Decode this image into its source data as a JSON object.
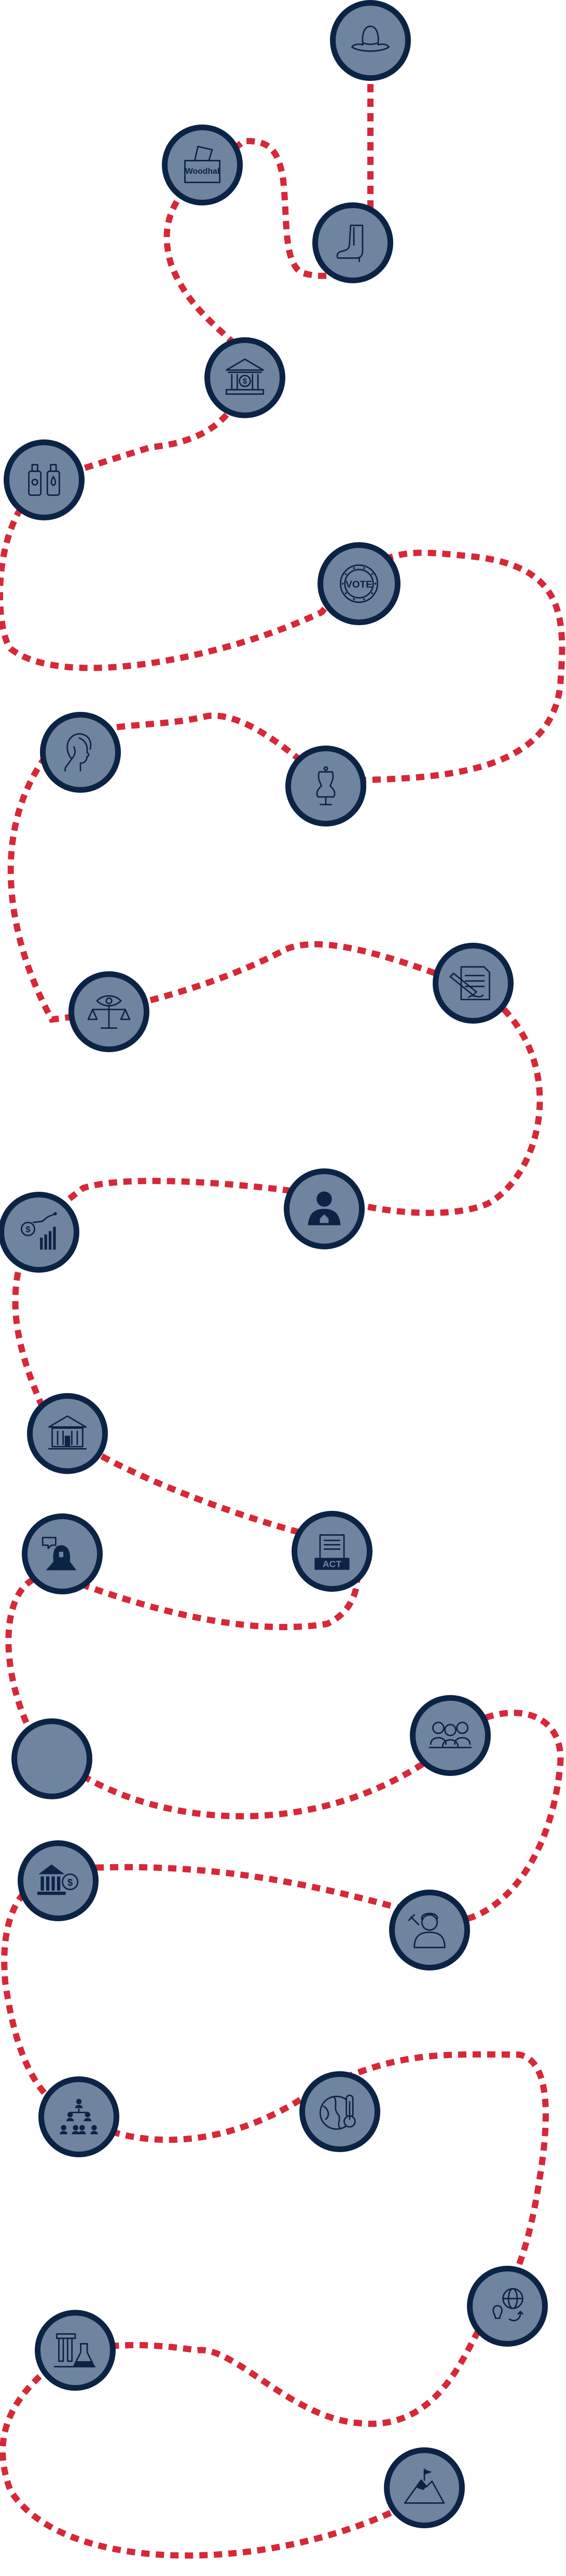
{
  "diagram": {
    "path_color": "#d62839",
    "node_ring_color": "#0b2344",
    "node_fill_color": "#6f849f",
    "nodes": [
      {
        "id": "hat",
        "icon": "hat-icon"
      },
      {
        "id": "boot",
        "icon": "boot-icon"
      },
      {
        "id": "ballot",
        "icon": "ballot-box-icon",
        "text": "Woodhal"
      },
      {
        "id": "bank",
        "icon": "bank-dollar-icon"
      },
      {
        "id": "bottles",
        "icon": "bottles-icon"
      },
      {
        "id": "vote",
        "icon": "vote-badge-icon",
        "text": "VOTE"
      },
      {
        "id": "woman",
        "icon": "woman-profile-icon"
      },
      {
        "id": "dress",
        "icon": "dress-form-icon"
      },
      {
        "id": "scales",
        "icon": "scales-eye-icon"
      },
      {
        "id": "signing",
        "icon": "document-signing-icon"
      },
      {
        "id": "banker-woman",
        "icon": "woman-banker-icon"
      },
      {
        "id": "growth",
        "icon": "money-growth-chart-icon"
      },
      {
        "id": "institution",
        "icon": "institution-building-icon"
      },
      {
        "id": "speaker",
        "icon": "woman-speaking-icon"
      },
      {
        "id": "act",
        "icon": "act-document-icon",
        "text": "ACT"
      },
      {
        "id": "blank",
        "icon": "blank-circle-icon"
      },
      {
        "id": "group",
        "icon": "group-of-women-icon"
      },
      {
        "id": "bank-money",
        "icon": "bank-money-icon"
      },
      {
        "id": "judge",
        "icon": "judge-woman-icon"
      },
      {
        "id": "org-chart",
        "icon": "organization-chart-icon"
      },
      {
        "id": "climate",
        "icon": "globe-thermometer-icon"
      },
      {
        "id": "global-ideas",
        "icon": "global-idea-icon"
      },
      {
        "id": "science",
        "icon": "lab-flasks-icon"
      },
      {
        "id": "summit",
        "icon": "mountain-summit-icon"
      }
    ]
  }
}
